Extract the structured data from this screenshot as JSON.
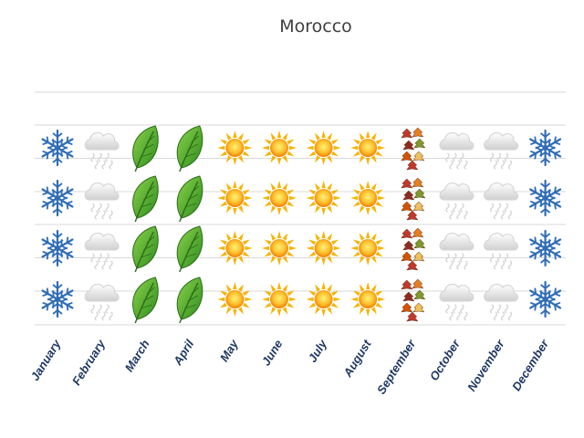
{
  "chart_data": {
    "type": "pictograph",
    "title": "Morocco",
    "categories": [
      "January",
      "February",
      "March",
      "April",
      "May",
      "June",
      "July",
      "August",
      "September",
      "October",
      "November",
      "December"
    ],
    "values": [
      "snow",
      "rain",
      "leaf",
      "leaf",
      "sun",
      "sun",
      "sun",
      "sun",
      "autumn",
      "rain",
      "rain",
      "snow"
    ],
    "icons_per_column": 4,
    "grid": true,
    "legend": "none"
  },
  "icons": {
    "snow": "snowflake-icon",
    "rain": "rain-cloud-icon",
    "leaf": "green-leaf-icon",
    "sun": "sun-icon",
    "autumn": "autumn-leaves-icon"
  },
  "colors": {
    "snow": "#2f6db5",
    "rain": "#d6d6d6",
    "leaf": "#4caf2a",
    "sun": "#f5b400",
    "autumn": "#c0392b",
    "label": "#1f3864",
    "grid": "#d9d9d9"
  }
}
